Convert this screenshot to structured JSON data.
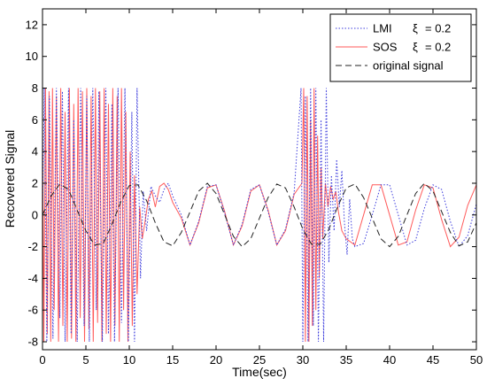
{
  "chart_data": {
    "type": "line",
    "xlabel": "Time(sec)",
    "ylabel": "Recovered Signal",
    "xlim": [
      0,
      50
    ],
    "ylim": [
      -8.5,
      13
    ],
    "x_ticks": [
      "0",
      "5",
      "10",
      "15",
      "20",
      "25",
      "30",
      "35",
      "40",
      "45",
      "50"
    ],
    "y_ticks": [
      "-8",
      "-6",
      "-4",
      "-2",
      "0",
      "2",
      "4",
      "6",
      "8",
      "10",
      "12"
    ],
    "grid": false,
    "legend_position": "top-right",
    "series": [
      {
        "name": "LMI",
        "legend_symbol": "ξ",
        "legend_value": "= 0.2",
        "style": "dotted",
        "color": "#3b3bdc",
        "x": [
          0.0,
          0.2,
          0.5,
          0.8,
          1.2,
          1.6,
          2.0,
          2.3,
          2.6,
          3.0,
          3.3,
          3.6,
          4.0,
          4.4,
          4.8,
          5.1,
          5.4,
          5.8,
          6.2,
          6.5,
          6.9,
          7.3,
          7.6,
          8.0,
          8.3,
          8.7,
          9.1,
          9.5,
          9.9,
          10.3,
          10.6,
          10.9,
          11.3,
          11.6,
          12.0,
          12.5,
          13.0,
          13.5,
          14.0,
          14.5,
          15.0,
          16.0,
          17.0,
          18.0,
          19.0,
          20.0,
          21.0,
          22.0,
          23.0,
          24.0,
          25.0,
          26.0,
          27.0,
          28.0,
          29.0,
          29.8,
          30.0,
          30.3,
          30.6,
          30.9,
          31.2,
          31.5,
          31.8,
          32.1,
          32.4,
          32.7,
          33.0,
          33.3,
          33.6,
          33.9,
          34.2,
          34.5,
          34.8,
          35.1,
          35.4,
          35.7,
          36.0,
          37.0,
          38.0,
          39.0,
          40.0,
          41.0,
          42.0,
          43.0,
          44.0,
          45.0,
          46.0,
          47.0,
          48.0,
          49.0,
          50.0
        ],
        "values": [
          0.0,
          8.0,
          -8.0,
          7.5,
          -7.8,
          8.0,
          -6.5,
          7.8,
          -8.0,
          8.0,
          -7.5,
          6.0,
          -8.0,
          8.0,
          -7.0,
          7.5,
          -8.0,
          8.0,
          -6.0,
          7.8,
          -8.0,
          8.0,
          -7.5,
          7.0,
          -8.0,
          8.0,
          -6.8,
          8.0,
          -8.0,
          6.5,
          -8.0,
          8.0,
          -4.0,
          1.5,
          -1.0,
          1.8,
          1.2,
          0.8,
          1.6,
          2.0,
          1.2,
          0.0,
          -1.9,
          -0.4,
          1.8,
          1.9,
          0.1,
          -1.9,
          -0.6,
          1.6,
          1.9,
          0.2,
          -1.9,
          -0.9,
          1.4,
          8.0,
          -8.0,
          7.5,
          -8.0,
          8.0,
          -7.0,
          8.0,
          -8.0,
          6.0,
          -8.0,
          8.0,
          -3.0,
          2.5,
          -1.0,
          3.5,
          0.5,
          2.8,
          -0.5,
          -2.5,
          1.0,
          -1.5,
          -2.0,
          -1.8,
          0.0,
          1.9,
          1.9,
          0.0,
          -1.9,
          -1.6,
          0.4,
          1.9,
          1.6,
          -0.4,
          -2.0,
          -1.3,
          0.7
        ]
      },
      {
        "name": "SOS",
        "legend_symbol": "ξ",
        "legend_value": "= 0.2",
        "style": "solid",
        "color": "#ff5a5a",
        "x": [
          0.0,
          0.15,
          0.35,
          0.55,
          0.75,
          0.95,
          1.15,
          1.35,
          1.6,
          1.85,
          2.1,
          2.35,
          2.6,
          2.85,
          3.1,
          3.35,
          3.6,
          3.85,
          4.1,
          4.35,
          4.6,
          4.85,
          5.1,
          5.35,
          5.6,
          5.85,
          6.1,
          6.35,
          6.6,
          6.85,
          7.1,
          7.35,
          7.6,
          7.85,
          8.1,
          8.35,
          8.6,
          8.85,
          9.1,
          9.35,
          9.6,
          9.85,
          10.1,
          10.35,
          10.6,
          10.9,
          11.2,
          11.5,
          11.8,
          12.2,
          12.6,
          13.0,
          13.5,
          14.0,
          14.5,
          15.0,
          16.0,
          17.0,
          18.0,
          19.0,
          20.0,
          21.0,
          22.0,
          23.0,
          24.0,
          25.0,
          26.0,
          27.0,
          28.0,
          29.0,
          29.9,
          30.1,
          30.3,
          30.5,
          30.7,
          30.9,
          31.1,
          31.3,
          31.5,
          31.7,
          31.9,
          32.1,
          32.3,
          32.6,
          32.9,
          33.2,
          33.5,
          33.8,
          34.1,
          34.5,
          35.0,
          36.0,
          37.0,
          38.0,
          39.0,
          40.0,
          41.0,
          42.0,
          43.0,
          44.0,
          45.0,
          46.0,
          47.0,
          48.0,
          49.0,
          50.0
        ],
        "values": [
          6.0,
          -8.0,
          8.0,
          -7.5,
          7.8,
          -8.0,
          8.0,
          -6.0,
          7.5,
          -8.0,
          8.0,
          -7.0,
          6.5,
          -8.0,
          8.0,
          -7.8,
          7.0,
          -8.0,
          8.0,
          -6.5,
          7.8,
          -8.0,
          8.0,
          -7.2,
          7.5,
          -8.0,
          8.0,
          -6.8,
          7.8,
          -8.0,
          8.0,
          -7.5,
          7.0,
          -8.0,
          8.0,
          -7.0,
          7.5,
          -8.0,
          8.0,
          -6.0,
          6.5,
          -8.0,
          4.0,
          -7.0,
          2.5,
          -5.0,
          0.5,
          -1.5,
          -0.5,
          1.0,
          1.5,
          0.5,
          1.8,
          2.0,
          1.6,
          0.8,
          -0.2,
          -1.9,
          -0.5,
          1.7,
          1.9,
          0.2,
          -1.9,
          -0.7,
          1.5,
          1.9,
          0.3,
          -1.9,
          -1.0,
          1.3,
          2.0,
          8.0,
          -8.0,
          7.5,
          -8.0,
          6.0,
          -7.0,
          8.0,
          -6.0,
          5.0,
          -4.0,
          3.0,
          -1.5,
          2.0,
          0.5,
          1.8,
          1.0,
          1.5,
          0.2,
          -1.0,
          -1.5,
          -1.9,
          0.0,
          1.9,
          1.9,
          0.0,
          -1.9,
          -1.7,
          0.3,
          1.9,
          1.7,
          -0.3,
          -2.0,
          -1.4,
          0.6,
          1.9
        ]
      },
      {
        "name": "original signal",
        "style": "dashed",
        "color": "#222222",
        "x": [
          0,
          1,
          2,
          3,
          4,
          5,
          6,
          7,
          8,
          9,
          10,
          11,
          12,
          13,
          14,
          15,
          16,
          17,
          18,
          19,
          20,
          21,
          22,
          23,
          24,
          25,
          26,
          27,
          28,
          29,
          30,
          31,
          32,
          33,
          34,
          35,
          36,
          37,
          38,
          39,
          40,
          41,
          42,
          43,
          44,
          45,
          46,
          47,
          48,
          49,
          50
        ],
        "values": [
          0.0,
          1.2,
          1.95,
          1.6,
          0.3,
          -1.0,
          -1.9,
          -1.8,
          -0.6,
          0.8,
          1.85,
          1.9,
          0.9,
          -0.5,
          -1.7,
          -1.95,
          -1.1,
          0.2,
          1.5,
          2.0,
          1.35,
          0.0,
          -1.35,
          -2.0,
          -1.5,
          -0.2,
          1.1,
          1.95,
          1.7,
          0.5,
          -0.9,
          -1.85,
          -1.85,
          -0.9,
          0.5,
          1.7,
          1.95,
          1.1,
          -0.2,
          -1.5,
          -2.0,
          -1.35,
          0.0,
          1.35,
          2.0,
          1.5,
          0.2,
          -1.1,
          -1.95,
          -1.7,
          -0.5
        ]
      }
    ]
  }
}
